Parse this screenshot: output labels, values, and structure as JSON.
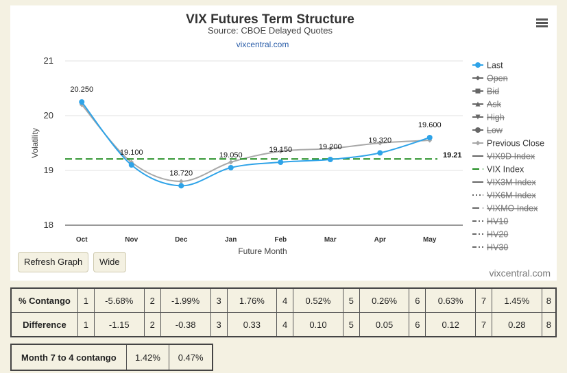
{
  "chart_data": {
    "type": "line",
    "title": "VIX Futures Term Structure",
    "subtitle": "Source: CBOE Delayed Quotes",
    "link": "vixcentral.com",
    "credits": "vixcentral.com",
    "x_label": "Future Month",
    "y_label": "Volatility",
    "categories": [
      "Oct",
      "Nov",
      "Dec",
      "Jan",
      "Feb",
      "Mar",
      "Apr",
      "May"
    ],
    "ylim": [
      18,
      21
    ],
    "yticks": [
      18,
      19,
      20,
      21
    ],
    "grid": true,
    "legend": "right",
    "series": [
      {
        "name": "Last",
        "color": "#2ea3e8",
        "marker": "circle",
        "visible": true,
        "values": [
          20.25,
          19.1,
          18.72,
          19.05,
          19.15,
          19.2,
          19.32,
          19.6
        ],
        "value_labels": [
          "20.250",
          "19.100",
          "18.720",
          "19.050",
          "19.150",
          "19.200",
          "19.320",
          "19.600"
        ]
      },
      {
        "name": "Open",
        "color": "#555555",
        "marker": "diamond",
        "visible": false
      },
      {
        "name": "Bid",
        "color": "#555555",
        "marker": "square",
        "visible": false
      },
      {
        "name": "Ask",
        "color": "#555555",
        "marker": "triangle",
        "visible": false
      },
      {
        "name": "High",
        "color": "#555555",
        "marker": "triangle-down",
        "visible": false
      },
      {
        "name": "Low",
        "color": "#555555",
        "marker": "circle",
        "visible": false
      },
      {
        "name": "Previous Close",
        "color": "#a8a8a8",
        "marker": "diamond",
        "visible": true,
        "values": [
          20.2,
          19.15,
          18.8,
          19.15,
          19.35,
          19.4,
          19.5,
          19.55
        ]
      },
      {
        "name": "VIX9D Index",
        "color": "#555555",
        "dash": "solid",
        "visible": false
      },
      {
        "name": "VIX Index",
        "color": "#1a8a1a",
        "dash": "dash",
        "visible": true,
        "value": 19.21
      },
      {
        "name": "VIX3M Index",
        "color": "#555555",
        "dash": "solid",
        "visible": false
      },
      {
        "name": "VIX6M Index",
        "color": "#555555",
        "dash": "dot",
        "visible": false
      },
      {
        "name": "VIXMO Index",
        "color": "#555555",
        "dash": "dash",
        "visible": false
      },
      {
        "name": "HV10",
        "color": "#555555",
        "dash": "dashdot",
        "visible": false
      },
      {
        "name": "HV20",
        "color": "#555555",
        "dash": "dashdot",
        "visible": false
      },
      {
        "name": "HV30",
        "color": "#555555",
        "dash": "dashdot",
        "visible": false
      }
    ]
  },
  "buttons": [
    "Refresh Graph",
    "Wide"
  ],
  "contango_table": {
    "rows": [
      [
        "% Contango",
        "1",
        "-5.68%",
        "2",
        "-1.99%",
        "3",
        "1.76%",
        "4",
        "0.52%",
        "5",
        "0.26%",
        "6",
        "0.63%",
        "7",
        "1.45%",
        "8"
      ],
      [
        "Difference",
        "1",
        "-1.15",
        "2",
        "-0.38",
        "3",
        "0.33",
        "4",
        "0.10",
        "5",
        "0.05",
        "6",
        "0.12",
        "7",
        "0.28",
        "8"
      ]
    ]
  },
  "month_table": {
    "rows": [
      [
        "Month 7 to 4 contango",
        "1.42%",
        "0.47%"
      ]
    ]
  }
}
